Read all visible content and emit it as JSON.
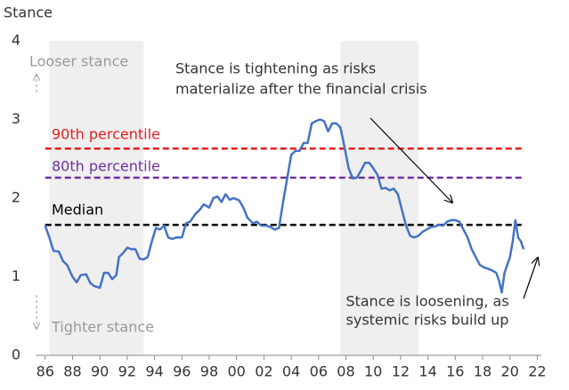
{
  "chart_data": {
    "type": "line",
    "y_label": "Stance",
    "xlim": [
      1985.3,
      2022.3
    ],
    "ylim": [
      0,
      4
    ],
    "yticks": [
      0,
      1,
      2,
      3,
      4
    ],
    "xticks": [
      {
        "value": 1986,
        "label": "86"
      },
      {
        "value": 1988,
        "label": "88"
      },
      {
        "value": 1990,
        "label": "90"
      },
      {
        "value": 1992,
        "label": "92"
      },
      {
        "value": 1994,
        "label": "94"
      },
      {
        "value": 1996,
        "label": "96"
      },
      {
        "value": 1998,
        "label": "98"
      },
      {
        "value": 2000,
        "label": "00"
      },
      {
        "value": 2002,
        "label": "02"
      },
      {
        "value": 2004,
        "label": "04"
      },
      {
        "value": 2006,
        "label": "06"
      },
      {
        "value": 2008,
        "label": "08"
      },
      {
        "value": 2010,
        "label": "10"
      },
      {
        "value": 2012,
        "label": "12"
      },
      {
        "value": 2014,
        "label": "14"
      },
      {
        "value": 2016,
        "label": "16"
      },
      {
        "value": 2018,
        "label": "18"
      },
      {
        "value": 2020,
        "label": "20"
      },
      {
        "value": 2022,
        "label": "22"
      }
    ],
    "shaded_regions": [
      [
        1986.3,
        1993.2
      ],
      [
        2007.6,
        2013.3
      ]
    ],
    "shade_color": "#efefef",
    "color": "#4472c4",
    "x": [
      1986.0,
      1986.3,
      1986.6,
      1987.0,
      1987.3,
      1987.6,
      1988.0,
      1988.3,
      1988.6,
      1989.0,
      1989.3,
      1989.6,
      1990.0,
      1990.3,
      1990.6,
      1990.9,
      1991.2,
      1991.4,
      1991.7,
      1992.0,
      1992.3,
      1992.6,
      1992.9,
      1993.2,
      1993.5,
      1993.8,
      1994.1,
      1994.4,
      1994.7,
      1995.0,
      1995.3,
      1995.6,
      1996.0,
      1996.3,
      1996.6,
      1997.0,
      1997.3,
      1997.6,
      1998.0,
      1998.3,
      1998.6,
      1998.9,
      1999.2,
      1999.5,
      1999.8,
      2000.2,
      2000.5,
      2000.8,
      2001.2,
      2001.5,
      2001.8,
      2002.2,
      2002.5,
      2002.8,
      2003.1,
      2003.4,
      2003.7,
      2004.0,
      2004.3,
      2004.6,
      2004.9,
      2005.2,
      2005.5,
      2005.8,
      2006.1,
      2006.4,
      2006.7,
      2007.0,
      2007.3,
      2007.6,
      2007.9,
      2008.2,
      2008.5,
      2008.8,
      2009.1,
      2009.4,
      2009.7,
      2010.0,
      2010.3,
      2010.6,
      2010.9,
      2011.2,
      2011.5,
      2011.8,
      2012.1,
      2012.4,
      2012.7,
      2013.0,
      2013.3,
      2013.6,
      2013.9,
      2014.2,
      2014.5,
      2014.8,
      2015.1,
      2015.4,
      2015.7,
      2016.0,
      2016.3,
      2016.6,
      2016.9,
      2017.2,
      2017.5,
      2017.8,
      2018.1,
      2018.4,
      2018.7,
      2019.0,
      2019.2,
      2019.4,
      2019.6,
      2019.8,
      2020.0,
      2020.2,
      2020.4,
      2020.6,
      2020.8,
      2021.0
    ],
    "values": [
      1.65,
      1.5,
      1.33,
      1.32,
      1.2,
      1.15,
      1.0,
      0.93,
      1.02,
      1.03,
      0.92,
      0.88,
      0.86,
      1.05,
      1.05,
      0.97,
      1.02,
      1.25,
      1.3,
      1.37,
      1.35,
      1.35,
      1.23,
      1.22,
      1.25,
      1.45,
      1.62,
      1.6,
      1.65,
      1.5,
      1.48,
      1.5,
      1.5,
      1.68,
      1.7,
      1.8,
      1.85,
      1.92,
      1.88,
      2.0,
      2.02,
      1.95,
      2.05,
      1.98,
      2.0,
      1.97,
      1.88,
      1.75,
      1.68,
      1.7,
      1.65,
      1.65,
      1.63,
      1.6,
      1.62,
      1.95,
      2.25,
      2.55,
      2.6,
      2.6,
      2.7,
      2.7,
      2.95,
      2.98,
      3.0,
      2.98,
      2.85,
      2.95,
      2.95,
      2.9,
      2.65,
      2.38,
      2.25,
      2.26,
      2.35,
      2.45,
      2.45,
      2.38,
      2.3,
      2.12,
      2.13,
      2.1,
      2.12,
      2.05,
      1.85,
      1.65,
      1.52,
      1.5,
      1.52,
      1.57,
      1.6,
      1.63,
      1.64,
      1.66,
      1.65,
      1.7,
      1.72,
      1.72,
      1.7,
      1.6,
      1.5,
      1.35,
      1.25,
      1.15,
      1.12,
      1.1,
      1.08,
      1.05,
      0.95,
      0.8,
      1.05,
      1.15,
      1.25,
      1.45,
      1.72,
      1.5,
      1.45,
      1.35
    ],
    "reference_lines": [
      {
        "label": "90th percentile",
        "value": 2.63,
        "color": "#e41e1e"
      },
      {
        "label": "80th percentile",
        "value": 2.26,
        "color": "#7030a0"
      },
      {
        "label": "Median",
        "value": 1.66,
        "color": "#000000"
      }
    ],
    "direction_labels": [
      "Looser stance",
      "Tighter stance"
    ],
    "annotations": [
      [
        "Stance is tightening as risks",
        "materialize after the financial crisis"
      ],
      [
        "Stance is loosening, as",
        "systemic risks build up"
      ]
    ]
  }
}
